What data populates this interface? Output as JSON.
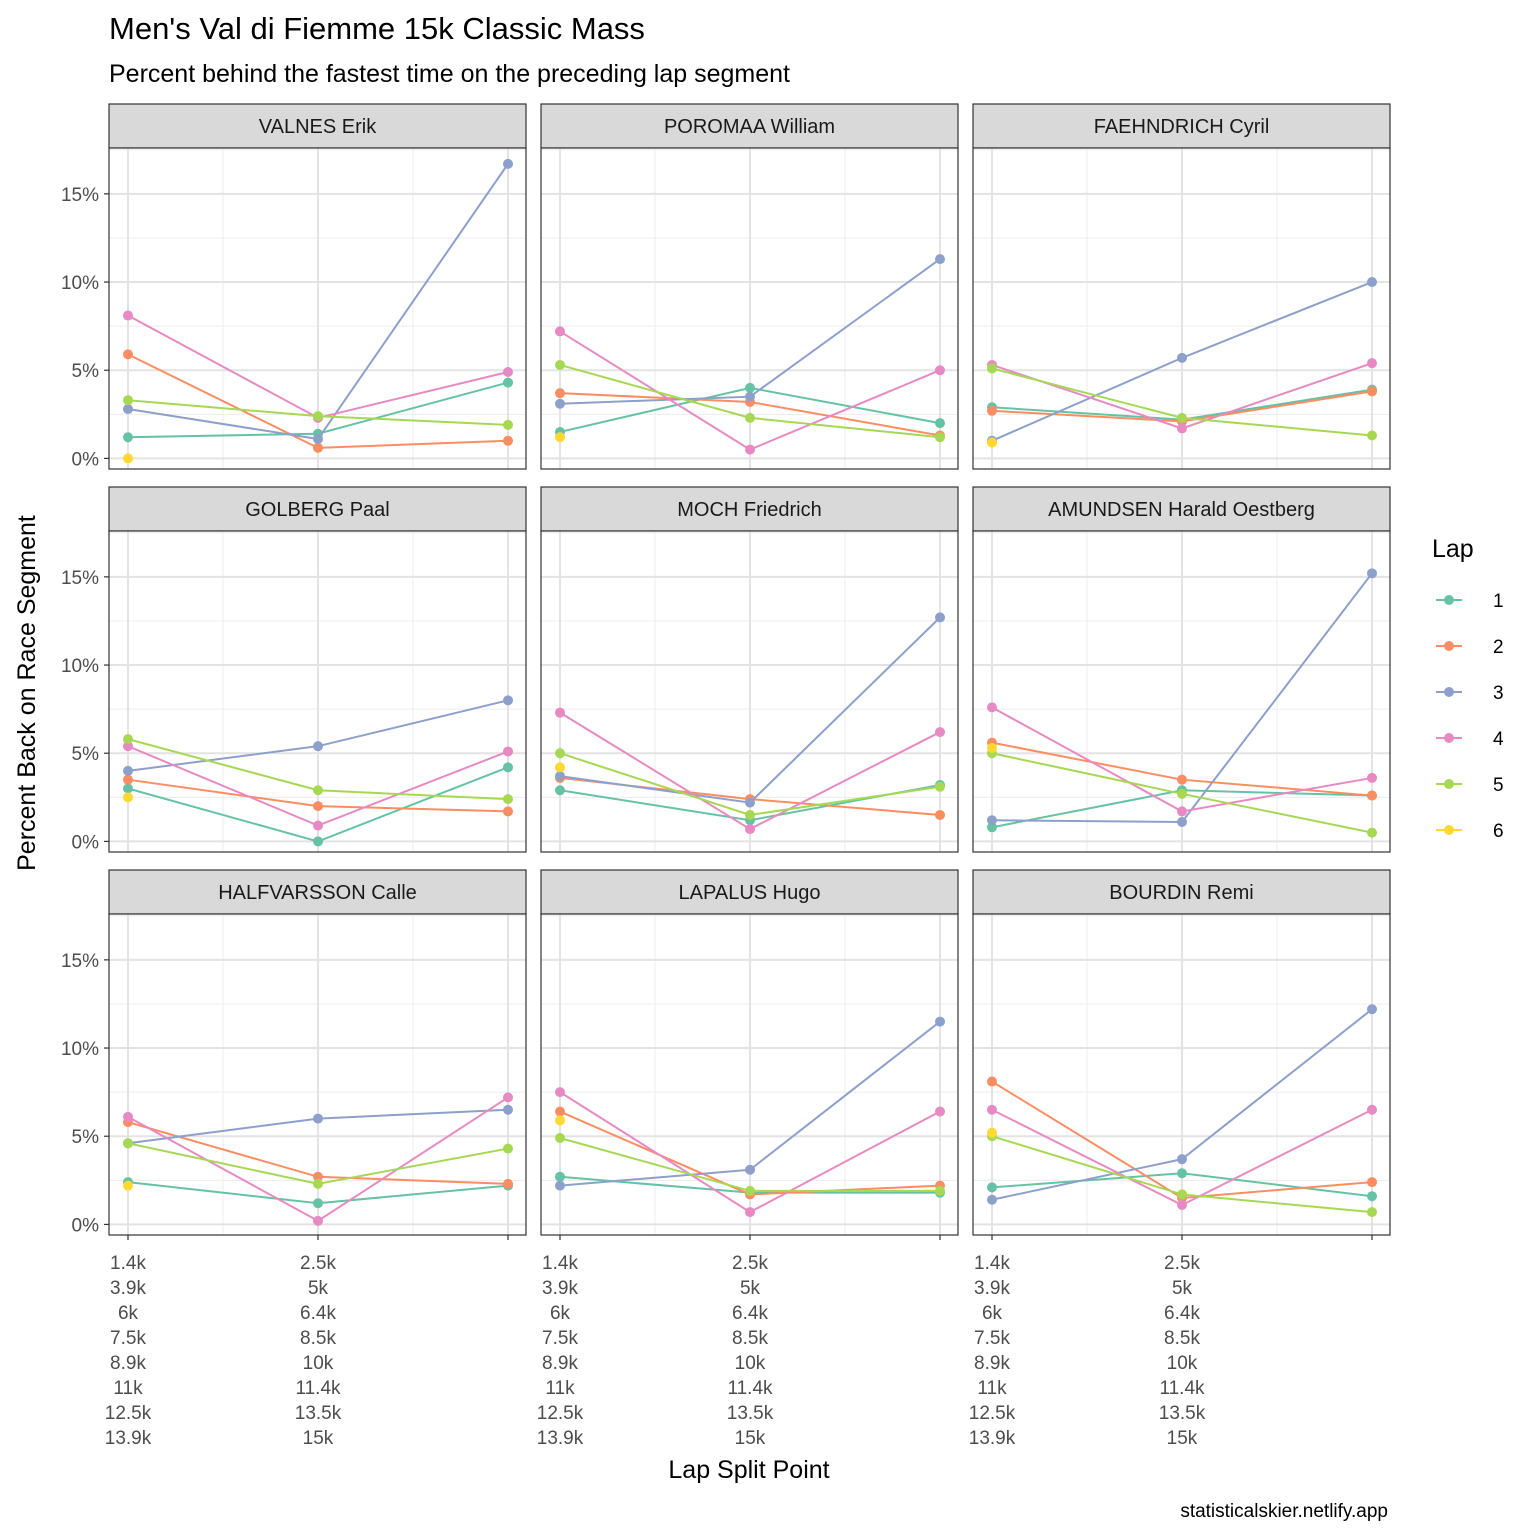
{
  "chart_data": {
    "type": "line",
    "title": "Men's Val di Fiemme 15k Classic Mass",
    "subtitle": "Percent behind the fastest time on the preceding lap segment",
    "xlabel": "Lap Split Point",
    "ylabel": "Percent Back on Race Segment",
    "caption": "statisticalskier.netlify.app",
    "x_tick_labels": [
      [
        "1.4k",
        "3.9k",
        "6k",
        "7.5k",
        "8.9k",
        "11k",
        "12.5k",
        "13.9k"
      ],
      [
        "2.5k",
        "5k",
        "6.4k",
        "8.5k",
        "10k",
        "11.4k",
        "13.5k",
        "15k"
      ]
    ],
    "y_ticks": [
      "0%",
      "5%",
      "10%",
      "15%"
    ],
    "ylim": [
      -0.6,
      17.6
    ],
    "legend": {
      "title": "Lap",
      "placement": "right",
      "entries": [
        {
          "label": "1",
          "color": "#66C2A5"
        },
        {
          "label": "2",
          "color": "#FC8D62"
        },
        {
          "label": "3",
          "color": "#8DA0CB"
        },
        {
          "label": "4",
          "color": "#E78AC3"
        },
        {
          "label": "5",
          "color": "#A6D854"
        },
        {
          "label": "6",
          "color": "#FFD92F"
        }
      ]
    },
    "panels": [
      {
        "name": "VALNES Erik",
        "laps": {
          "1": [
            1.2,
            1.4,
            4.3
          ],
          "2": [
            5.9,
            0.6,
            1.0
          ],
          "3": [
            2.8,
            1.1,
            16.7
          ],
          "4": [
            8.1,
            2.3,
            4.9
          ],
          "5": [
            3.3,
            2.4,
            1.9
          ],
          "6": [
            0.0
          ]
        }
      },
      {
        "name": "POROMAA William",
        "laps": {
          "1": [
            1.5,
            4.0,
            2.0
          ],
          "2": [
            3.7,
            3.2,
            1.3
          ],
          "3": [
            3.1,
            3.5,
            11.3
          ],
          "4": [
            7.2,
            0.5,
            5.0
          ],
          "5": [
            5.3,
            2.3,
            1.2
          ],
          "6": [
            1.2
          ]
        }
      },
      {
        "name": "FAEHNDRICH Cyril",
        "laps": {
          "1": [
            2.9,
            2.2,
            3.9
          ],
          "2": [
            2.7,
            2.1,
            3.8
          ],
          "3": [
            1.0,
            5.7,
            10.0
          ],
          "4": [
            5.3,
            1.7,
            5.4
          ],
          "5": [
            5.1,
            2.3,
            1.3
          ],
          "6": [
            0.9
          ]
        }
      },
      {
        "name": "GOLBERG Paal",
        "laps": {
          "1": [
            3.0,
            0.0,
            4.2
          ],
          "2": [
            3.5,
            2.0,
            1.7
          ],
          "3": [
            4.0,
            5.4,
            8.0
          ],
          "4": [
            5.4,
            0.9,
            5.1
          ],
          "5": [
            5.8,
            2.9,
            2.4
          ],
          "6": [
            2.5
          ]
        }
      },
      {
        "name": "MOCH Friedrich",
        "laps": {
          "1": [
            2.9,
            1.2,
            3.2
          ],
          "2": [
            3.6,
            2.4,
            1.5
          ],
          "3": [
            3.7,
            2.2,
            12.7
          ],
          "4": [
            7.3,
            0.7,
            6.2
          ],
          "5": [
            5.0,
            1.5,
            3.1
          ],
          "6": [
            4.2
          ]
        }
      },
      {
        "name": "AMUNDSEN Harald Oestberg",
        "laps": {
          "1": [
            0.8,
            2.9,
            2.6
          ],
          "2": [
            5.6,
            3.5,
            2.6
          ],
          "3": [
            1.2,
            1.1,
            15.2
          ],
          "4": [
            7.6,
            1.7,
            3.6
          ],
          "5": [
            5.0,
            2.7,
            0.5
          ],
          "6": [
            5.3
          ]
        }
      },
      {
        "name": "HALFVARSSON Calle",
        "laps": {
          "1": [
            2.4,
            1.2,
            2.2
          ],
          "2": [
            5.8,
            2.7,
            2.3
          ],
          "3": [
            4.6,
            6.0,
            6.5
          ],
          "4": [
            6.1,
            0.2,
            7.2
          ],
          "5": [
            4.6,
            2.3,
            4.3
          ],
          "6": [
            2.2
          ]
        }
      },
      {
        "name": "LAPALUS Hugo",
        "laps": {
          "1": [
            2.7,
            1.8,
            1.8
          ],
          "2": [
            6.4,
            1.7,
            2.2
          ],
          "3": [
            2.2,
            3.1,
            11.5
          ],
          "4": [
            7.5,
            0.7,
            6.4
          ],
          "5": [
            4.9,
            1.9,
            1.9
          ],
          "6": [
            5.9
          ]
        }
      },
      {
        "name": "BOURDIN Remi",
        "laps": {
          "1": [
            2.1,
            2.9,
            1.6
          ],
          "2": [
            8.1,
            1.5,
            2.4
          ],
          "3": [
            1.4,
            3.7,
            12.2
          ],
          "4": [
            6.5,
            1.1,
            6.5
          ],
          "5": [
            5.0,
            1.7,
            0.7
          ],
          "6": [
            5.2
          ]
        }
      }
    ]
  }
}
